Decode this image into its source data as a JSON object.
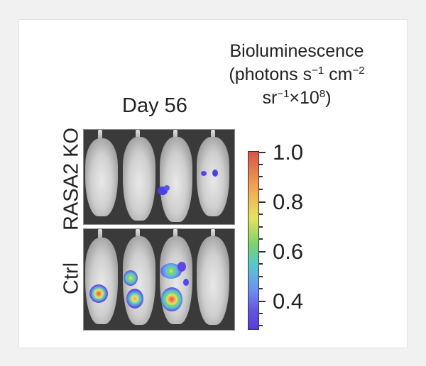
{
  "legend": {
    "line1": "Bioluminescence",
    "line2a": "(photons s",
    "sup1": "−1",
    "line2b": " cm",
    "sup2": "−2",
    "line3a": "sr",
    "sup3": "−1",
    "line3b": "×10",
    "sup4": "8",
    "line3c": ")"
  },
  "timepoint_label": "Day 56",
  "rows": [
    {
      "label": "RASA2 KO"
    },
    {
      "label": "Ctrl"
    }
  ],
  "colorbar": {
    "ticks": [
      "1.0",
      "0.8",
      "0.6",
      "0.4"
    ],
    "colors": [
      "#d9524b",
      "#f1a450",
      "#e7e35e",
      "#7bd36b",
      "#58c7d0",
      "#6f8ff2",
      "#6353e0",
      "#5a3bd8"
    ]
  },
  "photo": {
    "background_color": "#3a3a3a",
    "mice_per_row": 4
  }
}
